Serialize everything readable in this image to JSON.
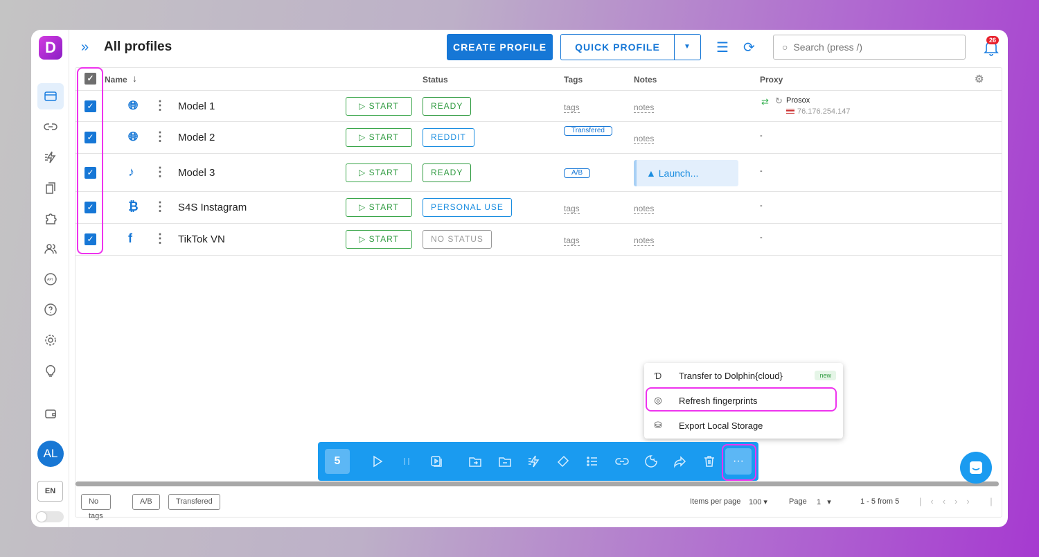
{
  "app": {
    "logo_letter": "D",
    "title": "All profiles",
    "accent": "#1677d6"
  },
  "header": {
    "create_label": "CREATE PROFILE",
    "quick_label": "QUICK PROFILE",
    "search_placeholder": "Search (press /)",
    "notifications": "26"
  },
  "sidebar": {
    "items": [
      "profiles",
      "links",
      "automation",
      "bookmarks",
      "extensions",
      "team",
      "api",
      "help",
      "settings",
      "ideas",
      "wallet"
    ],
    "avatar": "AL",
    "lang": "EN"
  },
  "table": {
    "columns": {
      "name": "Name",
      "status": "Status",
      "tags": "Tags",
      "notes": "Notes",
      "proxy": "Proxy"
    },
    "rows": [
      {
        "name": "Model 1",
        "os": "apple",
        "type": "globe",
        "start": "START",
        "status": "READY",
        "status_color": "#2e9a3f",
        "tags": "tags",
        "notes": "notes",
        "proxy_name": "Prosox",
        "proxy_ip": "76.176.254.147",
        "checked": true
      },
      {
        "name": "Model 2",
        "os": "apple",
        "type": "globe",
        "start": "START",
        "status": "REDDIT",
        "status_color": "#1a8de0",
        "tag": "Transfered",
        "notes": "notes",
        "proxy": "-",
        "checked": true
      },
      {
        "name": "Model 3",
        "os": "apple",
        "type": "tiktok",
        "start": "START",
        "status": "READY",
        "status_color": "#2e9a3f",
        "tag": "A/B",
        "notes_alert": "Launch...",
        "proxy": "-",
        "checked": true
      },
      {
        "name": "S4S Instagram",
        "os": "apple",
        "type": "bitcoin",
        "start": "START",
        "status": "PERSONAL USE",
        "status_color": "#1a8de0",
        "tags": "tags",
        "notes": "notes",
        "proxy": "-",
        "checked": true
      },
      {
        "name": "TikTok VN",
        "os": "apple",
        "type": "facebook",
        "start": "START",
        "status": "NO STATUS",
        "status_color": "#999999",
        "tags": "tags",
        "notes": "notes",
        "proxy": "-",
        "checked": true
      }
    ]
  },
  "toolbar": {
    "selected_count": "5",
    "more": "···"
  },
  "menu": {
    "items": [
      {
        "label": "Transfer to Dolphin{cloud}",
        "badge": "new"
      },
      {
        "label": "Refresh fingerprints"
      },
      {
        "label": "Export Local Storage"
      }
    ]
  },
  "footer": {
    "tags": [
      "No tags",
      "A/B",
      "Transfered"
    ],
    "items_per_page_label": "Items per page",
    "items_per_page": "100",
    "page_label": "Page",
    "page": "1",
    "range": "1 - 5 from 5"
  }
}
